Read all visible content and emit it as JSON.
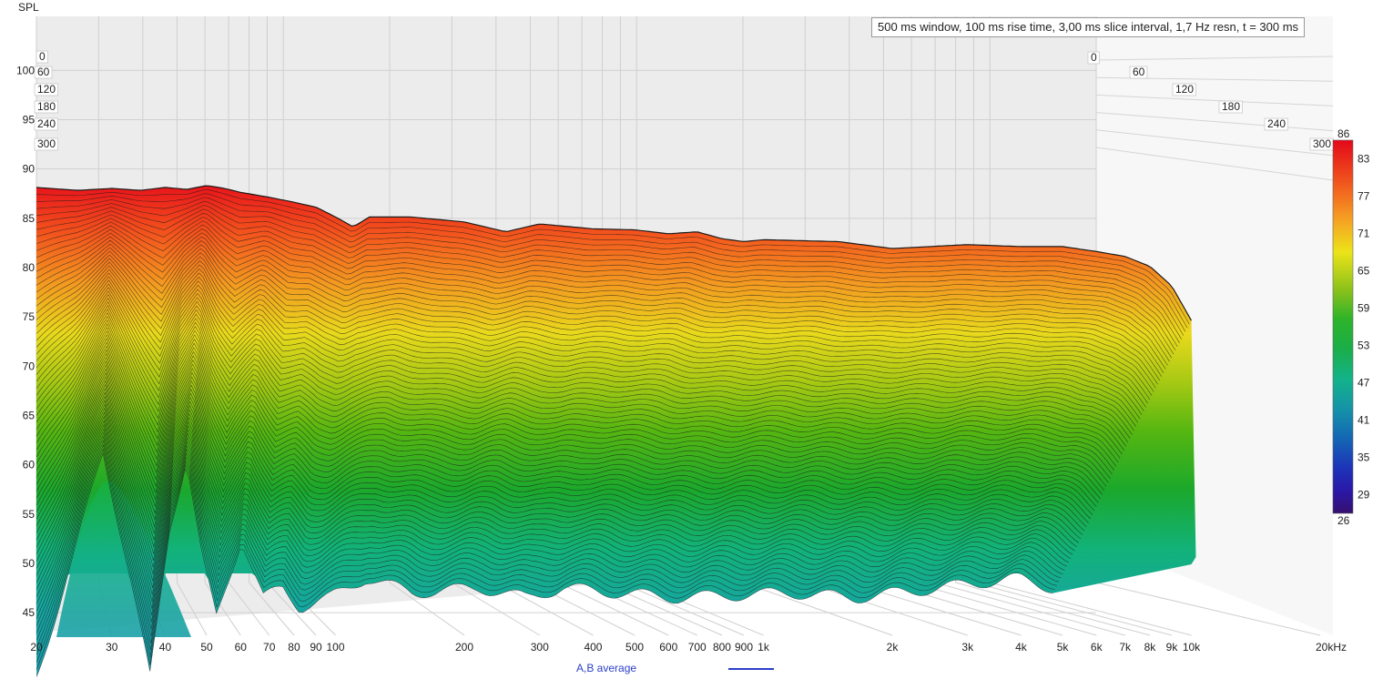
{
  "header": {
    "info": "500 ms window, 100 ms rise time, 3,00 ms slice interval, 1,7 Hz resn, t = 300 ms"
  },
  "legend": {
    "label": "A,B average",
    "color": "#2b3fc9"
  },
  "chart_data": {
    "type": "waterfall",
    "ylabel": "SPL",
    "xunit": "kHz",
    "ylim": [
      44,
      104
    ],
    "xlim": [
      20,
      20000
    ],
    "x_log_scale": true,
    "yticks": [
      45,
      50,
      55,
      60,
      65,
      70,
      75,
      80,
      85,
      90,
      95,
      100
    ],
    "ytick_labels": [
      "45",
      "50",
      "55",
      "60",
      "65",
      "70",
      "75",
      "80",
      "85",
      "90",
      "95",
      "100"
    ],
    "xticks": [
      20,
      30,
      40,
      50,
      60,
      70,
      80,
      90,
      100,
      200,
      300,
      400,
      500,
      600,
      700,
      800,
      900,
      1000,
      2000,
      3000,
      4000,
      5000,
      6000,
      7000,
      8000,
      9000,
      10000,
      20000
    ],
    "xtick_labels": [
      "20",
      "30",
      "40",
      "50",
      "60",
      "70",
      "80",
      "90",
      "100",
      "200",
      "300",
      "400",
      "500",
      "600",
      "700",
      "800",
      "900",
      "1k",
      "2k",
      "3k",
      "4k",
      "5k",
      "6k",
      "7k",
      "8k",
      "9k",
      "10k",
      "20kHz"
    ],
    "time_ticks_ms": [
      "0",
      "60",
      "120",
      "180",
      "240",
      "300"
    ],
    "time_range_ms": [
      0,
      300
    ],
    "colorbar": {
      "min": 26,
      "max": 86,
      "ticks": [
        "86",
        "83",
        "77",
        "71",
        "65",
        "59",
        "53",
        "47",
        "41",
        "35",
        "29",
        "26"
      ]
    },
    "front_slice": {
      "name": "t = 0 ms",
      "x": [
        20,
        25,
        30,
        35,
        40,
        45,
        50,
        55,
        60,
        70,
        80,
        90,
        100,
        110,
        120,
        150,
        200,
        250,
        300,
        400,
        500,
        600,
        700,
        800,
        900,
        1000,
        1500,
        2000,
        3000,
        4000,
        5000,
        6000,
        7000,
        8000,
        9000,
        10000
      ],
      "y": [
        88.5,
        88.2,
        88.4,
        88.2,
        88.5,
        88.3,
        88.7,
        88.4,
        88.0,
        87.5,
        87.0,
        86.5,
        85.5,
        84.5,
        85.5,
        85.5,
        85.0,
        84.0,
        84.8,
        84.3,
        84.2,
        83.8,
        84.0,
        83.3,
        83.0,
        83.2,
        83.0,
        82.3,
        82.7,
        82.5,
        82.5,
        82.0,
        81.5,
        80.5,
        78.5,
        75.0
      ]
    },
    "back_slice": {
      "name": "t = 300 ms",
      "x": [
        20,
        25,
        30,
        35,
        40,
        45,
        50,
        55,
        60,
        70,
        80,
        90,
        100,
        120,
        150,
        200,
        300,
        400,
        500,
        700,
        1000,
        2000,
        3000,
        5000,
        8000,
        10000
      ],
      "y": [
        40,
        52,
        63,
        51,
        40,
        55,
        62,
        52,
        46,
        54,
        48,
        49,
        47,
        48,
        50,
        48.5,
        49,
        48,
        49,
        48.5,
        48,
        48.5,
        48,
        49,
        50,
        49
      ]
    }
  }
}
